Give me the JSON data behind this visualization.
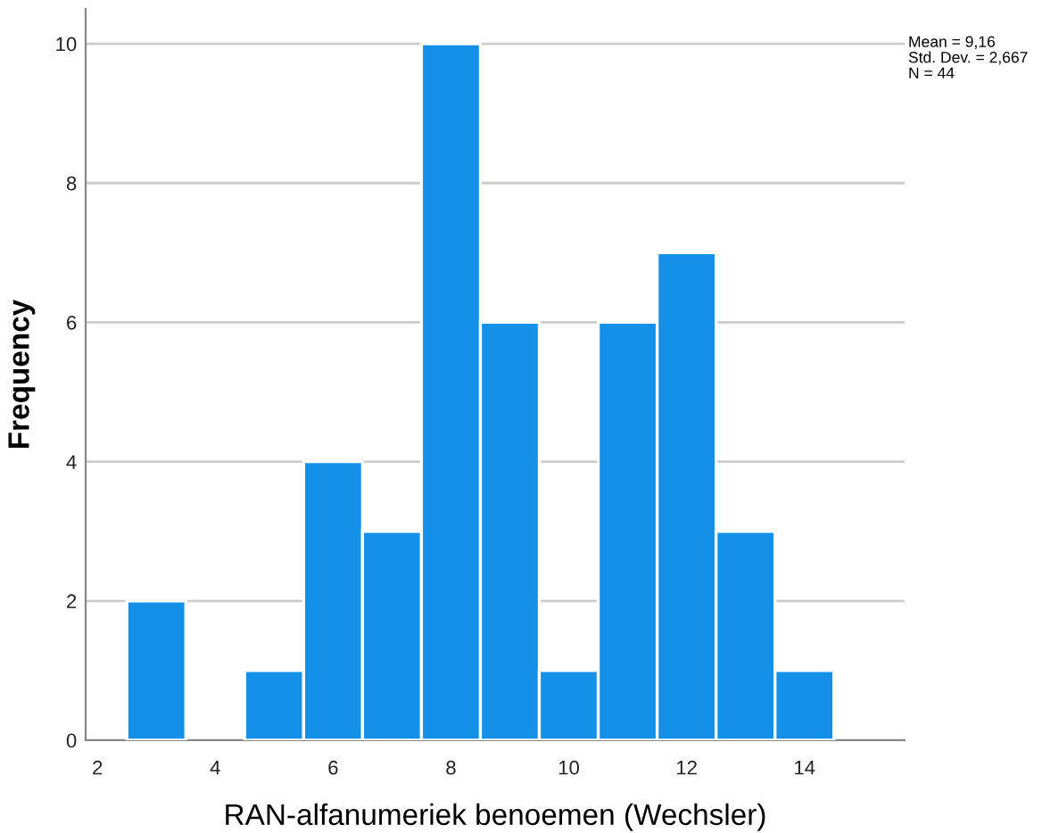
{
  "chart_data": {
    "type": "histogram",
    "xlabel": "RAN-alfanumeriek benoemen (Wechsler)",
    "ylabel": "Frequency",
    "bins": [
      2.5,
      3.5,
      4.5,
      5.5,
      6.5,
      7.5,
      8.5,
      9.5,
      10.5,
      11.5,
      12.5,
      13.5,
      14.5
    ],
    "values": [
      2,
      0,
      1,
      4,
      3,
      10,
      6,
      1,
      6,
      7,
      3,
      1
    ],
    "color": "#1490e8",
    "xlim": [
      1.8,
      15.7
    ],
    "xticks": [
      2,
      4,
      6,
      8,
      10,
      12,
      14
    ],
    "ylim": [
      0,
      10.5
    ],
    "yticks": [
      0,
      2,
      4,
      6,
      8,
      10
    ],
    "grid": "y",
    "annotations": [
      "Mean = 9,16\nStd. Dev. = 2,667\nN = 44"
    ]
  }
}
